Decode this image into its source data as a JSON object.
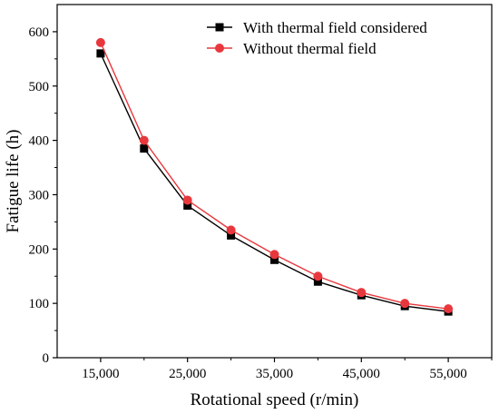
{
  "chart_data": {
    "type": "line",
    "xlabel": "Rotational speed  (r/min)",
    "ylabel": "Fatigue life (h)",
    "xlim": [
      10000,
      60000
    ],
    "ylim": [
      0,
      650
    ],
    "x_ticks": [
      15000,
      25000,
      35000,
      45000,
      55000
    ],
    "x_tick_labels": [
      "15,000",
      "25,000",
      "35,000",
      "45,000",
      "55,000"
    ],
    "y_ticks": [
      0,
      100,
      200,
      300,
      400,
      500,
      600
    ],
    "y_tick_labels": [
      "0",
      "100",
      "200",
      "300",
      "400",
      "500",
      "600"
    ],
    "grid": false,
    "legend_position": "top-right",
    "x": [
      15000,
      20000,
      25000,
      30000,
      35000,
      40000,
      45000,
      50000,
      55000
    ],
    "series": [
      {
        "name": "With thermal field considered",
        "color": "#000000",
        "marker": "square",
        "values": [
          560,
          385,
          280,
          225,
          180,
          140,
          115,
          95,
          85
        ]
      },
      {
        "name": "Without thermal field",
        "color": "#e8383d",
        "marker": "circle",
        "values": [
          580,
          400,
          290,
          235,
          190,
          150,
          120,
          100,
          90
        ]
      }
    ]
  }
}
